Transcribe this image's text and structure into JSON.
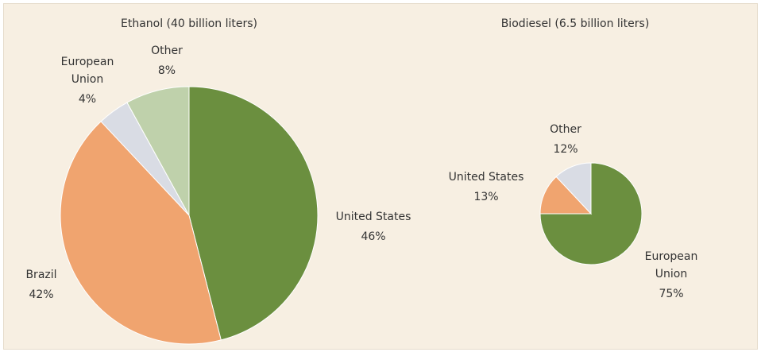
{
  "chart_data": [
    {
      "type": "pie",
      "title": "Ethanol (40 billion liters)",
      "categories": [
        "United States",
        "Brazil",
        "European Union",
        "Other"
      ],
      "values": [
        46,
        42,
        4,
        8
      ],
      "value_labels": [
        "46%",
        "42%",
        "4%",
        "8%"
      ],
      "colors": [
        "#6b8f3f",
        "#f0a46f",
        "#d9dce4",
        "#bfd1ab"
      ]
    },
    {
      "type": "pie",
      "title": "Biodiesel (6.5 billion liters)",
      "categories": [
        "European Union",
        "United States",
        "Other"
      ],
      "values": [
        75,
        13,
        12
      ],
      "value_labels": [
        "75%",
        "13%",
        "12%"
      ],
      "colors": [
        "#6b8f3f",
        "#f0a46f",
        "#d9dce4"
      ]
    }
  ]
}
